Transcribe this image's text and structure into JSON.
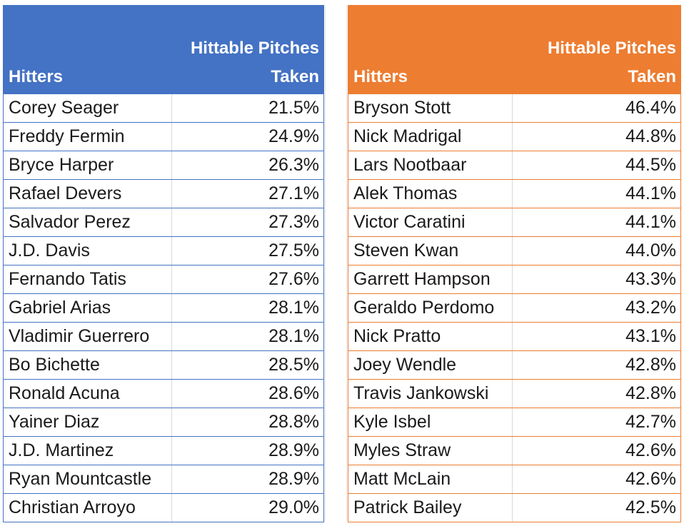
{
  "chart_data": [
    {
      "type": "table",
      "header_color": "#4472c4",
      "columns": [
        "Hitters",
        "Hittable Pitches Taken"
      ],
      "col_header_name": "Hitters",
      "col_header_value_line1": "Hittable Pitches",
      "col_header_value_line2": "Taken",
      "rows": [
        {
          "hitter": "Corey Seager",
          "value": "21.5%"
        },
        {
          "hitter": "Freddy Fermin",
          "value": "24.9%"
        },
        {
          "hitter": "Bryce Harper",
          "value": "26.3%"
        },
        {
          "hitter": "Rafael Devers",
          "value": "27.1%"
        },
        {
          "hitter": "Salvador Perez",
          "value": "27.3%"
        },
        {
          "hitter": "J.D. Davis",
          "value": "27.5%"
        },
        {
          "hitter": "Fernando Tatis",
          "value": "27.6%"
        },
        {
          "hitter": "Gabriel Arias",
          "value": "28.1%"
        },
        {
          "hitter": "Vladimir Guerrero",
          "value": "28.1%"
        },
        {
          "hitter": "Bo Bichette",
          "value": "28.5%"
        },
        {
          "hitter": "Ronald Acuna",
          "value": "28.6%"
        },
        {
          "hitter": "Yainer Diaz",
          "value": "28.8%"
        },
        {
          "hitter": "J.D. Martinez",
          "value": "28.9%"
        },
        {
          "hitter": "Ryan Mountcastle",
          "value": "28.9%"
        },
        {
          "hitter": "Christian Arroyo",
          "value": "29.0%"
        }
      ]
    },
    {
      "type": "table",
      "header_color": "#ed7d31",
      "columns": [
        "Hitters",
        "Hittable Pitches Taken"
      ],
      "col_header_name": "Hitters",
      "col_header_value_line1": "Hittable Pitches",
      "col_header_value_line2": "Taken",
      "rows": [
        {
          "hitter": "Bryson Stott",
          "value": "46.4%"
        },
        {
          "hitter": "Nick Madrigal",
          "value": "44.8%"
        },
        {
          "hitter": "Lars Nootbaar",
          "value": "44.5%"
        },
        {
          "hitter": "Alek Thomas",
          "value": "44.1%"
        },
        {
          "hitter": "Victor Caratini",
          "value": "44.1%"
        },
        {
          "hitter": "Steven Kwan",
          "value": "44.0%"
        },
        {
          "hitter": "Garrett Hampson",
          "value": "43.3%"
        },
        {
          "hitter": "Geraldo Perdomo",
          "value": "43.2%"
        },
        {
          "hitter": "Nick Pratto",
          "value": "43.1%"
        },
        {
          "hitter": "Joey Wendle",
          "value": "42.8%"
        },
        {
          "hitter": "Travis Jankowski",
          "value": "42.8%"
        },
        {
          "hitter": "Kyle Isbel",
          "value": "42.7%"
        },
        {
          "hitter": "Myles Straw",
          "value": "42.6%"
        },
        {
          "hitter": "Matt McLain",
          "value": "42.6%"
        },
        {
          "hitter": "Patrick Bailey",
          "value": "42.5%"
        }
      ]
    }
  ]
}
